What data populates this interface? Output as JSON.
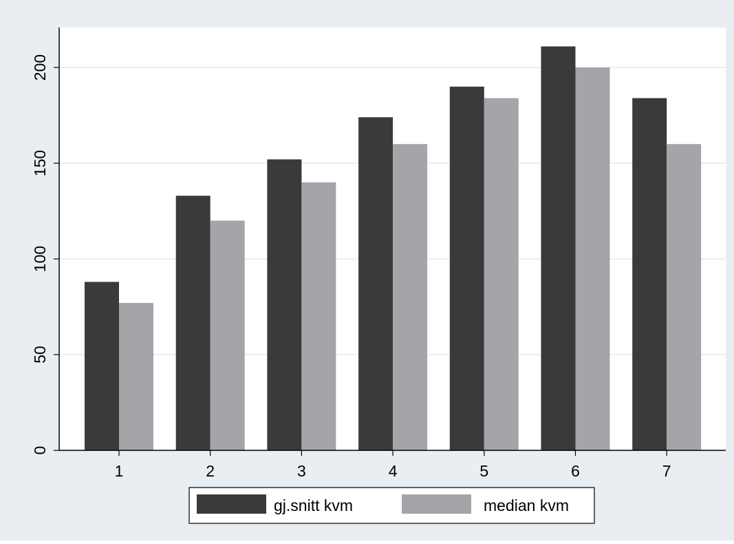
{
  "chart_data": {
    "type": "bar",
    "title": "",
    "xlabel": "",
    "ylabel": "",
    "categories": [
      "1",
      "2",
      "3",
      "4",
      "5",
      "6",
      "7"
    ],
    "series": [
      {
        "name": "gj.snitt kvm",
        "color": "#3a3a3a",
        "values": [
          88,
          133,
          152,
          174,
          190,
          211,
          184
        ]
      },
      {
        "name": "median kvm",
        "color": "#a3a5a8",
        "values": [
          77,
          120,
          140,
          160,
          184,
          200,
          160
        ]
      }
    ],
    "yticks": [
      "0",
      "50",
      "100",
      "150",
      "200"
    ],
    "ylim": [
      0,
      220
    ],
    "grid": true,
    "legend_position": "bottom",
    "colors": {
      "background": "#e8eef2",
      "plot_background": "#ffffff",
      "gridline": "#e2ebee",
      "axis": "#000000"
    }
  }
}
